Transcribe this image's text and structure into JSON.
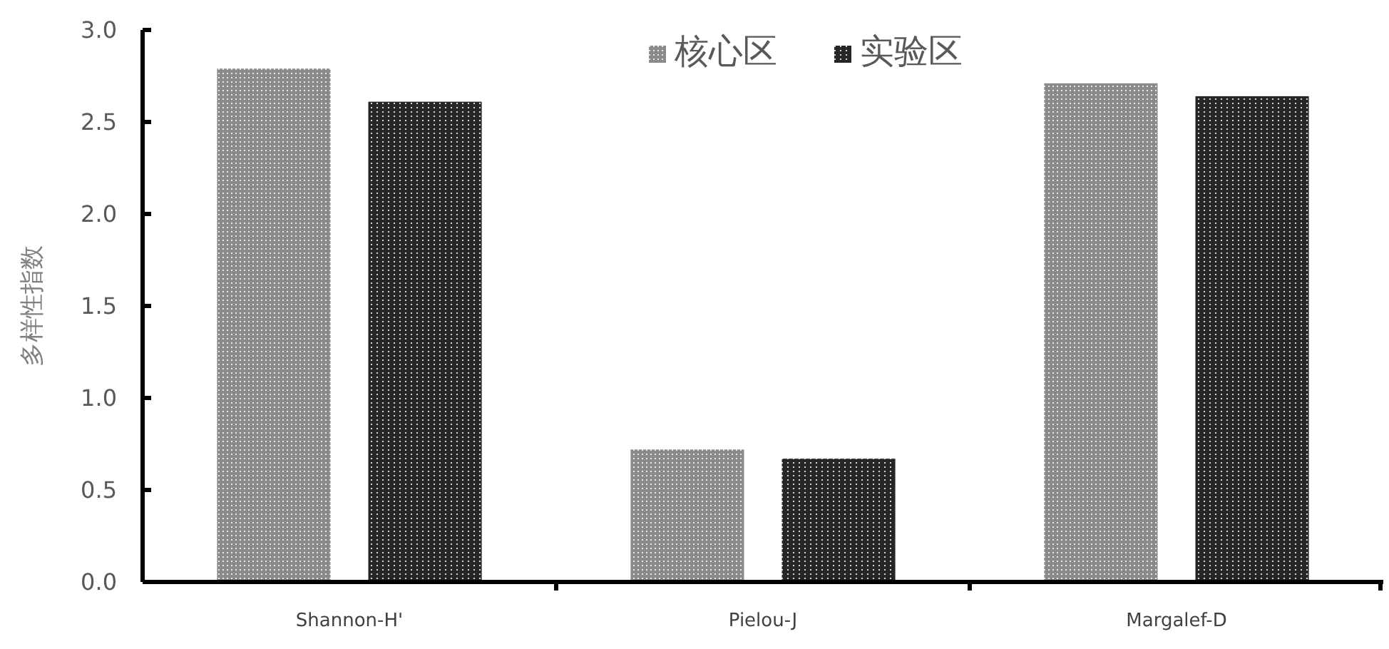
{
  "chart_data": {
    "type": "bar",
    "ylabel": "多样性指数",
    "categories": [
      "Shannon-H'",
      "Pielou-J",
      "Margalef-D"
    ],
    "series": [
      {
        "name": "核心区",
        "color": "#8a8a8a",
        "values": [
          2.79,
          0.72,
          2.71
        ]
      },
      {
        "name": "实验区",
        "color": "#262626",
        "values": [
          2.61,
          0.67,
          2.64
        ]
      }
    ],
    "ylim": [
      0,
      3
    ],
    "yticks": [
      {
        "value": 0,
        "label": "0.0"
      },
      {
        "value": 0.5,
        "label": "0.5"
      },
      {
        "value": 1,
        "label": "1.0"
      },
      {
        "value": 1.5,
        "label": "1.5"
      },
      {
        "value": 2,
        "label": "2.0"
      },
      {
        "value": 2.5,
        "label": "2.5"
      },
      {
        "value": 3,
        "label": "3.0"
      }
    ],
    "grid": false,
    "legend": "top"
  }
}
